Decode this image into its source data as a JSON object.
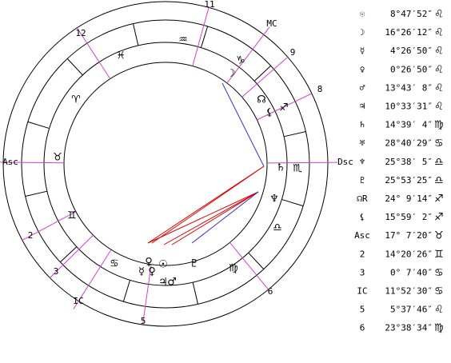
{
  "wheel": {
    "houses": [
      "11",
      "MC",
      "9",
      "8",
      "Dsc",
      "6",
      "5",
      "IC",
      "3",
      "2",
      "Asc",
      "12"
    ],
    "signs": [
      "♒",
      "♑",
      "♐",
      "♏",
      "♎",
      "♍",
      "♋",
      "♊",
      "♉",
      "♈",
      "♓"
    ],
    "planets": [
      "☽",
      "☊",
      "⚸",
      "♄",
      "♆",
      "♇",
      "☉",
      "♀",
      "☿",
      "♀",
      "♃",
      "♂"
    ]
  },
  "positions": [
    {
      "symbol": "☉",
      "degree": "8°47′52″",
      "sign": "♌"
    },
    {
      "symbol": "☽",
      "degree": "16°26′12″",
      "sign": "♌"
    },
    {
      "symbol": "☿",
      "degree": "4°26′50″",
      "sign": "♌"
    },
    {
      "symbol": "♀",
      "degree": "0°26′50″",
      "sign": "♌"
    },
    {
      "symbol": "♂",
      "degree": "13°43′ 8″",
      "sign": "♌"
    },
    {
      "symbol": "♃",
      "degree": "10°33′31″",
      "sign": "♌"
    },
    {
      "symbol": "♄",
      "degree": "14°39′ 4″",
      "sign": "♍"
    },
    {
      "symbol": "♅",
      "degree": "28°40′29″",
      "sign": "♋"
    },
    {
      "symbol": "♆",
      "degree": "25°38′ 5″",
      "sign": "♎"
    },
    {
      "symbol": "♇",
      "degree": "25°53′25″",
      "sign": "♎"
    },
    {
      "symbol": "☊R",
      "degree": "24° 9′14″",
      "sign": "♐"
    },
    {
      "symbol": "⚸",
      "degree": "15°59′ 2″",
      "sign": "♐"
    },
    {
      "symbol": "Asc",
      "degree": "17° 7′20″",
      "sign": "♉"
    },
    {
      "symbol": "2",
      "degree": "14°20′26″",
      "sign": "♊"
    },
    {
      "symbol": "3",
      "degree": "0° 7′40″",
      "sign": "♋"
    },
    {
      "symbol": "IC",
      "degree": "11°52′30″",
      "sign": "♋"
    },
    {
      "symbol": "5",
      "degree": "5°37′46″",
      "sign": "♌"
    },
    {
      "symbol": "6",
      "degree": "23°38′34″",
      "sign": "♍"
    }
  ]
}
